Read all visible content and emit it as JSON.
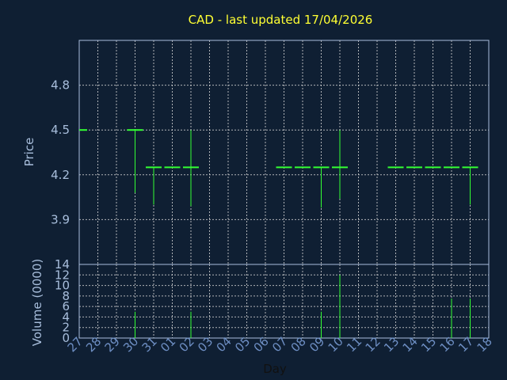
{
  "chart_data": {
    "type": "ohlc",
    "title": "CAD - last updated 17/04/2026",
    "xlabel": "Day",
    "colors": {
      "background": "#0f1f33",
      "frame": "#a8bedc",
      "grid": "#d8d8d8",
      "bar": "#33ff33",
      "title": "#ffff33"
    },
    "x_ticks": [
      "27",
      "28",
      "29",
      "30",
      "31",
      "01",
      "02",
      "03",
      "04",
      "05",
      "06",
      "07",
      "08",
      "09",
      "10",
      "11",
      "12",
      "13",
      "14",
      "15",
      "16",
      "17",
      "18"
    ],
    "price_panel": {
      "ylabel": "Price",
      "ylim": [
        3.6,
        5.1
      ],
      "y_ticks": [
        "3.9",
        "4.2",
        "4.5",
        "4.8"
      ],
      "y_tick_values": [
        3.9,
        4.2,
        4.5,
        4.8
      ],
      "bars": [
        {
          "day": "27",
          "open": 4.5,
          "high": 4.5,
          "low": 4.5,
          "close": 4.5
        },
        {
          "day": "30",
          "open": 4.5,
          "high": 4.5,
          "low": 4.08,
          "close": 4.5
        },
        {
          "day": "31",
          "open": 4.25,
          "high": 4.25,
          "low": 4.0,
          "close": 4.25
        },
        {
          "day": "01",
          "open": 4.25,
          "high": 4.25,
          "low": 4.25,
          "close": 4.25
        },
        {
          "day": "02",
          "open": 4.25,
          "high": 4.5,
          "low": 3.99,
          "close": 4.25
        },
        {
          "day": "07",
          "open": 4.25,
          "high": 4.25,
          "low": 4.25,
          "close": 4.25
        },
        {
          "day": "08",
          "open": 4.25,
          "high": 4.25,
          "low": 4.25,
          "close": 4.25
        },
        {
          "day": "09",
          "open": 4.25,
          "high": 4.25,
          "low": 3.98,
          "close": 4.25
        },
        {
          "day": "10",
          "open": 4.25,
          "high": 4.5,
          "low": 4.04,
          "close": 4.25
        },
        {
          "day": "13",
          "open": 4.25,
          "high": 4.25,
          "low": 4.25,
          "close": 4.25
        },
        {
          "day": "14",
          "open": 4.25,
          "high": 4.25,
          "low": 4.25,
          "close": 4.25
        },
        {
          "day": "15",
          "open": 4.25,
          "high": 4.25,
          "low": 4.25,
          "close": 4.25
        },
        {
          "day": "16",
          "open": 4.25,
          "high": 4.25,
          "low": 4.25,
          "close": 4.25
        },
        {
          "day": "17",
          "open": 4.25,
          "high": 4.25,
          "low": 4.0,
          "close": 4.25
        }
      ]
    },
    "volume_panel": {
      "ylabel": "Volume (0000)",
      "ylim": [
        0,
        14
      ],
      "y_ticks": [
        "0",
        "2",
        "4",
        "6",
        "8",
        "10",
        "12",
        "14"
      ],
      "y_tick_values": [
        0,
        2,
        4,
        6,
        8,
        10,
        12,
        14
      ],
      "bars": [
        {
          "day": "30",
          "volume": 5
        },
        {
          "day": "02",
          "volume": 5
        },
        {
          "day": "09",
          "volume": 5
        },
        {
          "day": "10",
          "volume": 12
        },
        {
          "day": "16",
          "volume": 7.5
        },
        {
          "day": "17",
          "volume": 7.5
        }
      ]
    }
  }
}
